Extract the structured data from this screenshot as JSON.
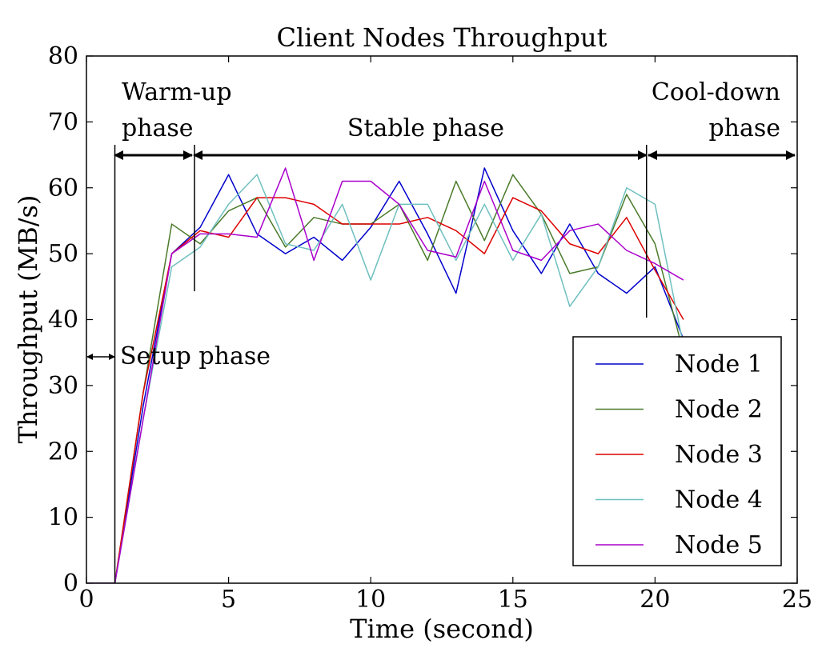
{
  "chart_data": {
    "type": "line",
    "title": "Client Nodes Throughput",
    "xlabel": "Time (second)",
    "ylabel": "Throughput (MB/s)",
    "xlim": [
      0,
      25
    ],
    "ylim": [
      0,
      80
    ],
    "xticks": [
      "0",
      "5",
      "10",
      "15",
      "20",
      "25"
    ],
    "yticks": [
      "0",
      "10",
      "20",
      "30",
      "40",
      "50",
      "60",
      "70",
      "80"
    ],
    "grid": false,
    "legend_position": "lower-right",
    "x": [
      0,
      1,
      2,
      3,
      4,
      5,
      6,
      7,
      8,
      9,
      10,
      11,
      12,
      13,
      14,
      15,
      16,
      17,
      18,
      19,
      20,
      21
    ],
    "series": [
      {
        "name": "Node 1",
        "color": "#0000cc",
        "values": [
          0,
          0,
          27,
          50,
          54,
          62,
          53,
          50,
          52.5,
          49,
          54,
          61,
          53,
          44,
          63,
          53.5,
          47,
          54.5,
          47,
          44,
          48,
          37
        ]
      },
      {
        "name": "Node 2",
        "color": "#4a7a2a",
        "values": [
          0,
          0,
          29,
          54.5,
          51.5,
          56.5,
          58.5,
          51,
          55.5,
          54.5,
          54.5,
          57.5,
          49,
          61,
          52,
          62,
          56,
          47,
          48,
          59,
          51.5,
          35
        ]
      },
      {
        "name": "Node 3",
        "color": "#dd0000",
        "values": [
          0,
          0,
          29,
          50,
          53.5,
          52.5,
          58.5,
          58.5,
          57.5,
          54.5,
          54.5,
          54.5,
          55.5,
          53.5,
          50,
          58.5,
          56.5,
          51.5,
          50,
          55.5,
          47.5,
          40
        ]
      },
      {
        "name": "Node 4",
        "color": "#6fbfbf",
        "values": [
          0,
          0,
          25,
          48,
          51,
          57.5,
          62,
          51.5,
          50.5,
          57.5,
          46,
          57.5,
          57.5,
          49,
          57.5,
          49,
          56,
          42,
          48,
          60,
          57.5,
          36
        ]
      },
      {
        "name": "Node 5",
        "color": "#aa00cc",
        "values": [
          0,
          0,
          25,
          50,
          53,
          53,
          52.5,
          63,
          49,
          61,
          61,
          57.5,
          50.5,
          49.5,
          61,
          50.5,
          49,
          53.5,
          54.5,
          50.5,
          48.5,
          46
        ]
      }
    ],
    "phase_markers": [
      1,
      3.8,
      19.7
    ],
    "annotations": {
      "setup": "Setup phase",
      "warmup_line1": "Warm-up",
      "warmup_line2": "phase",
      "stable": "Stable phase",
      "cooldown_line1": "Cool-down",
      "cooldown_line2": "phase"
    }
  }
}
